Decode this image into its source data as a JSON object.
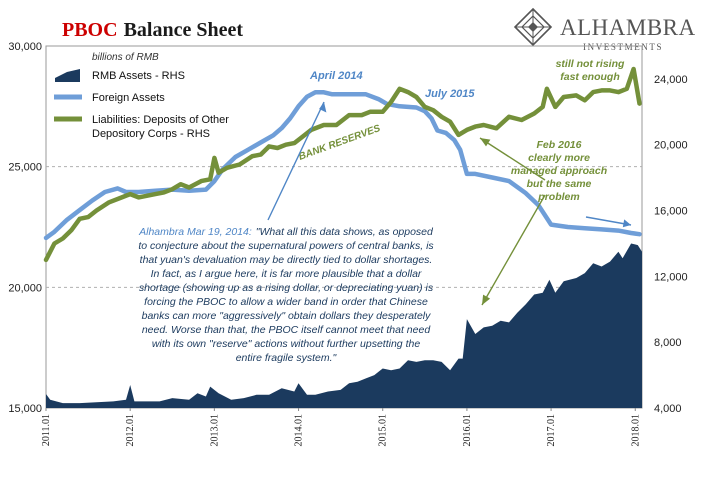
{
  "chart_data": {
    "type": "line",
    "title": {
      "accent": "PBOC",
      "rest": "Balance Sheet"
    },
    "units_note": "billions of RMB",
    "brand": {
      "name": "ALHAMBRA",
      "sub": "INVESTMENTS"
    },
    "grid": true,
    "left_axis": {
      "ticks": [
        "30,000",
        "25,000",
        "20,000",
        "15,000"
      ],
      "values": [
        30000,
        25000,
        20000,
        15000
      ],
      "range": [
        15000,
        30000
      ]
    },
    "right_axis": {
      "ticks": [
        "24,000",
        "20,000",
        "16,000",
        "12,000",
        "8,000",
        "4,000"
      ],
      "values": [
        24000,
        20000,
        16000,
        12000,
        8000,
        4000
      ],
      "range": [
        4000,
        26000
      ]
    },
    "x_axis": {
      "range": [
        2011.0,
        2018.08
      ],
      "ticks": [
        {
          "label": "2011.01",
          "x": 2011.0
        },
        {
          "label": "2012.01",
          "x": 2012.0
        },
        {
          "label": "2013.01",
          "x": 2013.0
        },
        {
          "label": "2014.01",
          "x": 2014.0
        },
        {
          "label": "2015.01",
          "x": 2015.0
        },
        {
          "label": "2016.01",
          "x": 2016.0
        },
        {
          "label": "2017.01",
          "x": 2017.0
        },
        {
          "label": "2018.01",
          "x": 2018.0
        }
      ]
    },
    "legend": {
      "items": [
        {
          "label": "RMB Assets - RHS",
          "color": "#1b3a5e",
          "kind": "area"
        },
        {
          "label": "Foreign Assets",
          "color": "#6f9ed8",
          "kind": "line"
        },
        {
          "label": "Liabilities: Deposits of Other",
          "label2": "Depository Corps - RHS",
          "color": "#74903a",
          "kind": "line"
        }
      ]
    },
    "series": [
      {
        "name": "Foreign Assets",
        "axis": "left",
        "color": "#6f9ed8",
        "points": [
          [
            2011.0,
            22050
          ],
          [
            2011.1,
            22300
          ],
          [
            2011.25,
            22800
          ],
          [
            2011.4,
            23200
          ],
          [
            2011.55,
            23600
          ],
          [
            2011.7,
            23950
          ],
          [
            2011.85,
            24100
          ],
          [
            2011.95,
            23950
          ],
          [
            2012.1,
            23950
          ],
          [
            2012.3,
            24000
          ],
          [
            2012.5,
            24050
          ],
          [
            2012.7,
            24000
          ],
          [
            2012.9,
            24050
          ],
          [
            2013.0,
            24400
          ],
          [
            2013.1,
            24900
          ],
          [
            2013.25,
            25400
          ],
          [
            2013.4,
            25700
          ],
          [
            2013.55,
            26000
          ],
          [
            2013.7,
            26300
          ],
          [
            2013.8,
            26600
          ],
          [
            2013.9,
            27000
          ],
          [
            2014.0,
            27500
          ],
          [
            2014.1,
            27900
          ],
          [
            2014.2,
            28080
          ],
          [
            2014.3,
            28080
          ],
          [
            2014.4,
            28000
          ],
          [
            2014.6,
            28000
          ],
          [
            2014.8,
            28000
          ],
          [
            2014.95,
            27800
          ],
          [
            2015.05,
            27600
          ],
          [
            2015.2,
            27500
          ],
          [
            2015.4,
            27450
          ],
          [
            2015.5,
            27300
          ],
          [
            2015.58,
            27000
          ],
          [
            2015.65,
            26500
          ],
          [
            2015.75,
            26400
          ],
          [
            2015.85,
            26100
          ],
          [
            2015.92,
            25700
          ],
          [
            2016.0,
            24700
          ],
          [
            2016.1,
            24700
          ],
          [
            2016.3,
            24550
          ],
          [
            2016.5,
            24400
          ],
          [
            2016.7,
            23900
          ],
          [
            2016.85,
            23400
          ],
          [
            2017.0,
            22600
          ],
          [
            2017.2,
            22500
          ],
          [
            2017.4,
            22450
          ],
          [
            2017.6,
            22400
          ],
          [
            2017.8,
            22350
          ],
          [
            2017.95,
            22250
          ],
          [
            2018.05,
            22200
          ]
        ]
      },
      {
        "name": "Liabilities: Deposits of Other Depository Corps - RHS",
        "axis": "right",
        "color": "#74903a",
        "points": [
          [
            2011.0,
            13000
          ],
          [
            2011.1,
            14000
          ],
          [
            2011.2,
            14300
          ],
          [
            2011.3,
            14800
          ],
          [
            2011.4,
            15500
          ],
          [
            2011.5,
            15600
          ],
          [
            2011.6,
            16000
          ],
          [
            2011.75,
            16500
          ],
          [
            2011.9,
            16800
          ],
          [
            2012.0,
            17000
          ],
          [
            2012.1,
            16800
          ],
          [
            2012.3,
            17000
          ],
          [
            2012.4,
            17100
          ],
          [
            2012.5,
            17300
          ],
          [
            2012.6,
            17600
          ],
          [
            2012.7,
            17400
          ],
          [
            2012.85,
            17800
          ],
          [
            2012.95,
            17900
          ],
          [
            2013.0,
            19200
          ],
          [
            2013.05,
            18300
          ],
          [
            2013.15,
            18600
          ],
          [
            2013.3,
            18800
          ],
          [
            2013.45,
            19300
          ],
          [
            2013.55,
            19400
          ],
          [
            2013.65,
            19900
          ],
          [
            2013.75,
            19800
          ],
          [
            2013.85,
            20000
          ],
          [
            2013.95,
            20100
          ],
          [
            2014.05,
            20500
          ],
          [
            2014.15,
            20900
          ],
          [
            2014.3,
            21200
          ],
          [
            2014.45,
            21200
          ],
          [
            2014.6,
            21800
          ],
          [
            2014.75,
            21800
          ],
          [
            2014.85,
            22000
          ],
          [
            2015.0,
            22000
          ],
          [
            2015.1,
            22600
          ],
          [
            2015.2,
            23400
          ],
          [
            2015.3,
            23200
          ],
          [
            2015.4,
            22900
          ],
          [
            2015.5,
            22300
          ],
          [
            2015.6,
            22100
          ],
          [
            2015.7,
            21700
          ],
          [
            2015.8,
            21400
          ],
          [
            2015.9,
            20600
          ],
          [
            2016.0,
            20900
          ],
          [
            2016.1,
            21100
          ],
          [
            2016.2,
            21200
          ],
          [
            2016.35,
            21000
          ],
          [
            2016.5,
            21700
          ],
          [
            2016.65,
            21500
          ],
          [
            2016.8,
            21900
          ],
          [
            2016.9,
            22300
          ],
          [
            2016.95,
            23400
          ],
          [
            2017.05,
            22300
          ],
          [
            2017.15,
            22900
          ],
          [
            2017.3,
            23000
          ],
          [
            2017.4,
            22700
          ],
          [
            2017.5,
            23200
          ],
          [
            2017.6,
            23300
          ],
          [
            2017.7,
            23300
          ],
          [
            2017.8,
            23200
          ],
          [
            2017.9,
            23400
          ],
          [
            2017.98,
            24600
          ],
          [
            2018.05,
            22500
          ]
        ]
      },
      {
        "name": "RMB Assets - RHS",
        "axis": "right",
        "color": "#1b3a5e",
        "kind": "area",
        "points": [
          [
            2011.0,
            4850
          ],
          [
            2011.05,
            4500
          ],
          [
            2011.2,
            4300
          ],
          [
            2011.4,
            4300
          ],
          [
            2011.6,
            4350
          ],
          [
            2011.8,
            4400
          ],
          [
            2011.95,
            4500
          ],
          [
            2012.0,
            5400
          ],
          [
            2012.05,
            4400
          ],
          [
            2012.2,
            4400
          ],
          [
            2012.35,
            4400
          ],
          [
            2012.5,
            4600
          ],
          [
            2012.7,
            4500
          ],
          [
            2012.8,
            4900
          ],
          [
            2012.9,
            4700
          ],
          [
            2012.95,
            5300
          ],
          [
            2013.05,
            4900
          ],
          [
            2013.2,
            4500
          ],
          [
            2013.35,
            4600
          ],
          [
            2013.5,
            4800
          ],
          [
            2013.65,
            4800
          ],
          [
            2013.8,
            5200
          ],
          [
            2013.95,
            5000
          ],
          [
            2014.0,
            5500
          ],
          [
            2014.1,
            4800
          ],
          [
            2014.2,
            4800
          ],
          [
            2014.35,
            5000
          ],
          [
            2014.5,
            5100
          ],
          [
            2014.6,
            5500
          ],
          [
            2014.7,
            5600
          ],
          [
            2014.8,
            5800
          ],
          [
            2014.9,
            6000
          ],
          [
            2015.0,
            6400
          ],
          [
            2015.1,
            6300
          ],
          [
            2015.2,
            6400
          ],
          [
            2015.3,
            6900
          ],
          [
            2015.4,
            6800
          ],
          [
            2015.5,
            6900
          ],
          [
            2015.6,
            6900
          ],
          [
            2015.7,
            6800
          ],
          [
            2015.8,
            6300
          ],
          [
            2015.9,
            7000
          ],
          [
            2015.95,
            7000
          ],
          [
            2016.0,
            9400
          ],
          [
            2016.1,
            8500
          ],
          [
            2016.2,
            8900
          ],
          [
            2016.3,
            9000
          ],
          [
            2016.4,
            9300
          ],
          [
            2016.5,
            9200
          ],
          [
            2016.6,
            9800
          ],
          [
            2016.7,
            10300
          ],
          [
            2016.8,
            10900
          ],
          [
            2016.9,
            11000
          ],
          [
            2016.98,
            11800
          ],
          [
            2017.05,
            11000
          ],
          [
            2017.15,
            11700
          ],
          [
            2017.3,
            11900
          ],
          [
            2017.4,
            12200
          ],
          [
            2017.5,
            12800
          ],
          [
            2017.6,
            12600
          ],
          [
            2017.7,
            12900
          ],
          [
            2017.8,
            13500
          ],
          [
            2017.85,
            13100
          ],
          [
            2017.95,
            14000
          ],
          [
            2018.03,
            13900
          ],
          [
            2018.08,
            13500
          ]
        ]
      }
    ],
    "annotations": {
      "april2014": "April 2014",
      "july2015": "July 2015",
      "bank_reserves": "BANK RESERVES",
      "still_not_rising": [
        "still not rising",
        "fast enough"
      ],
      "feb2016": [
        "Feb 2016",
        "clearly more",
        "managed approach",
        "but the same",
        "problem"
      ],
      "quote_author": "Alhambra Mar 19, 2014:",
      "quote_lines": [
        "\"What all this data shows, as opposed",
        "to conjecture about the supernatural powers of central banks, is",
        "that yuan's devaluation may be directly tied to dollar shortages.",
        "In fact, as I argue here, it is far more plausible that a dollar",
        "shortage (showing up as a rising dollar, or depreciating yuan) is",
        "forcing the PBOC to allow a wider band in order that Chinese",
        "banks can more \"aggressively\" obtain dollars they desperately",
        "need. Worse than that, the PBOC itself cannot meet that need",
        "with its own \"reserve\" actions without further upsetting the",
        "entire fragile system.\""
      ]
    },
    "colors": {
      "title_accent": "#cc0000",
      "title": "#1a1a1a",
      "annotation_blue": "#4f86c6",
      "annotation_green": "#74903a",
      "quote": "#1b3a5e",
      "grid": "#b0b0b0"
    }
  }
}
